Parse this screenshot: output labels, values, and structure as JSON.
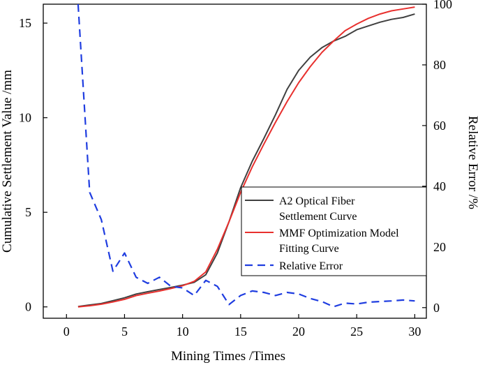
{
  "chart_data": {
    "type": "line",
    "title": "",
    "xlabel": "Mining Times /Times",
    "ylabel": "Cumulative Settlement Value /mm",
    "y2label": "Relative Error /%",
    "xlim": [
      -2,
      31
    ],
    "ylim": [
      -0.6,
      16
    ],
    "y2lim": [
      -3.5,
      100
    ],
    "xticks": [
      0,
      5,
      10,
      15,
      20,
      25,
      30
    ],
    "yticks": [
      0,
      5,
      10,
      15
    ],
    "y2ticks": [
      0,
      20,
      40,
      60,
      80,
      100
    ],
    "legend_position": "right-middle",
    "series": [
      {
        "name": "A2 Optical Fiber Settlement Curve",
        "legend_lines": [
          "A2 Optical Fiber",
          "Settlement Curve"
        ],
        "axis": "left",
        "color": "#404040",
        "style": "solid",
        "x": [
          1,
          2,
          3,
          4,
          5,
          6,
          7,
          8,
          9,
          10,
          11,
          12,
          13,
          14,
          15,
          16,
          17,
          18,
          19,
          20,
          21,
          22,
          23,
          24,
          25,
          26,
          27,
          28,
          29,
          30
        ],
        "values": [
          0.02,
          0.1,
          0.18,
          0.33,
          0.48,
          0.68,
          0.8,
          0.92,
          1.03,
          1.15,
          1.3,
          1.7,
          2.85,
          4.5,
          6.3,
          7.7,
          8.9,
          10.15,
          11.5,
          12.5,
          13.2,
          13.7,
          14.05,
          14.3,
          14.65,
          14.85,
          15.05,
          15.2,
          15.3,
          15.48
        ]
      },
      {
        "name": "MMF Optimization Model Fitting Curve",
        "legend_lines": [
          "MMF Optimization Model",
          "Fitting Curve"
        ],
        "axis": "left",
        "color": "#e8302e",
        "style": "solid",
        "x": [
          1,
          2,
          3,
          4,
          5,
          6,
          7,
          8,
          9,
          10,
          11,
          12,
          13,
          14,
          15,
          16,
          17,
          18,
          19,
          20,
          21,
          22,
          23,
          24,
          25,
          26,
          27,
          28,
          29,
          30
        ],
        "values": [
          0.0,
          0.06,
          0.14,
          0.26,
          0.4,
          0.6,
          0.72,
          0.84,
          0.97,
          1.12,
          1.35,
          1.85,
          3.05,
          4.5,
          6.05,
          7.4,
          8.6,
          9.75,
          10.85,
          11.85,
          12.7,
          13.45,
          14.05,
          14.6,
          14.95,
          15.25,
          15.48,
          15.65,
          15.75,
          15.85
        ]
      },
      {
        "name": "Relative Error",
        "legend_lines": [
          "Relative Error"
        ],
        "axis": "right",
        "color": "#1f3de0",
        "style": "dashed",
        "x": [
          1,
          2,
          3,
          4,
          5,
          6,
          7,
          8,
          9,
          10,
          11,
          12,
          13,
          14,
          15,
          16,
          17,
          18,
          19,
          20,
          21,
          22,
          23,
          24,
          25,
          26,
          27,
          28,
          29,
          30
        ],
        "values": [
          100,
          38,
          29,
          12,
          18,
          10,
          8,
          10,
          7,
          6.5,
          4,
          9,
          7,
          1,
          4,
          5.5,
          5,
          4,
          5,
          4.5,
          3,
          2,
          0.3,
          1.5,
          1.2,
          1.8,
          2,
          2.2,
          2.5,
          2.2
        ]
      }
    ]
  }
}
